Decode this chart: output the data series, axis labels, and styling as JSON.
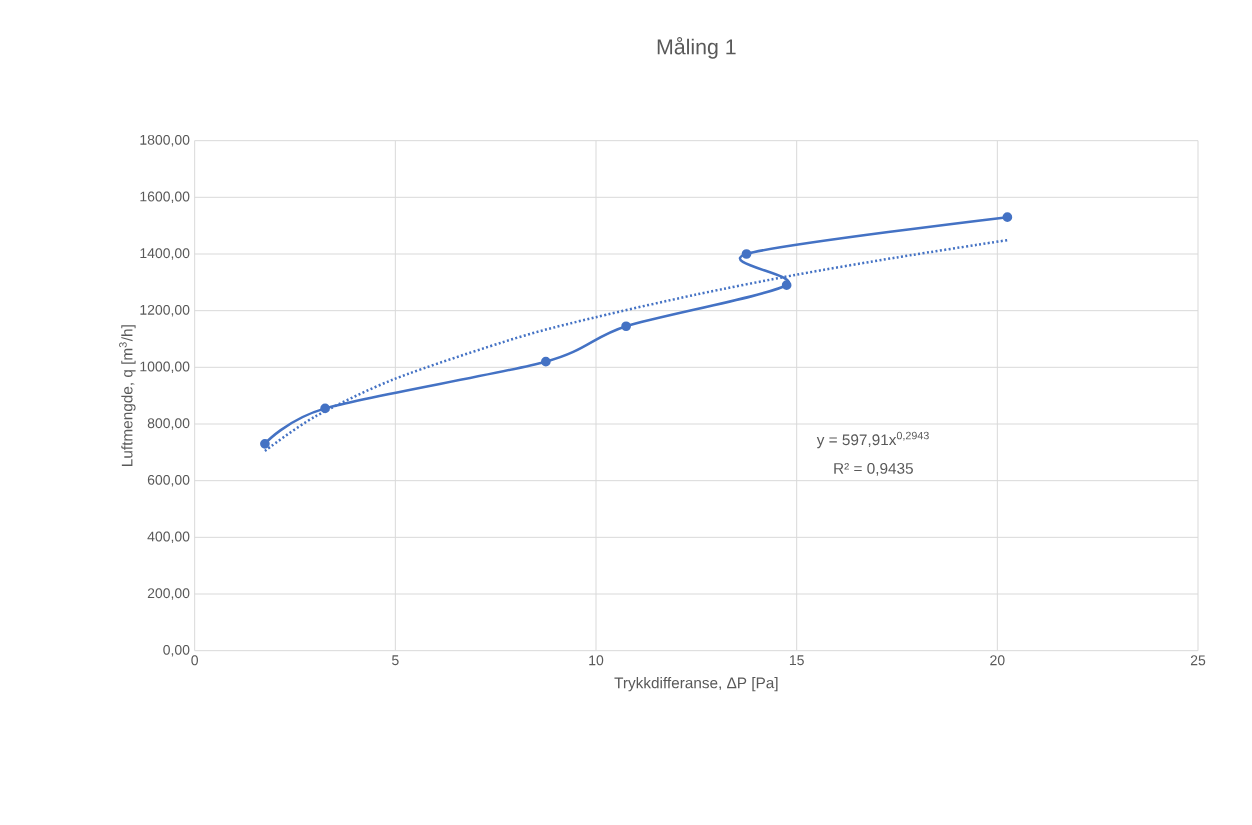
{
  "chart_data": {
    "type": "line",
    "title": "Måling 1",
    "xlabel": "Trykkdifferanse, ΔP [Pa]",
    "ylabel": "Luftmengde, q [m$^{3}$/h]",
    "series": [
      {
        "color": "#4472c4",
        "x": [
          1.75,
          3.25,
          8.75,
          10.75,
          14.75,
          13.75,
          20.25
        ],
        "values": [
          730,
          855,
          1020,
          1145,
          1290,
          1400,
          1530
        ]
      },
      {
        "color": "#4472c4",
        "marker": "none",
        "line_style": "dotted",
        "x": [
          1.75,
          3,
          5,
          8,
          10,
          12.5,
          15,
          17.5,
          20.25
        ],
        "values": [
          705,
          826,
          960,
          1103,
          1177,
          1257,
          1327,
          1388,
          1449
        ]
      }
    ],
    "xlim": [
      0,
      25
    ],
    "xticks": [
      0,
      5,
      10,
      15,
      20,
      25
    ],
    "ylim": [
      0,
      1800
    ],
    "yticks": [
      {
        "value": 0,
        "label": "0,00"
      },
      {
        "value": 200,
        "label": "200,00"
      },
      {
        "value": 400,
        "label": "400,00"
      },
      {
        "value": 600,
        "label": "600,00"
      },
      {
        "value": 800,
        "label": "800,00"
      },
      {
        "value": 1000,
        "label": "1000,00"
      },
      {
        "value": 1200,
        "label": "1200,00"
      },
      {
        "value": 1400,
        "label": "1400,00"
      },
      {
        "value": 1600,
        "label": "1600,00"
      },
      {
        "value": 1800,
        "label": "1800,00"
      }
    ],
    "grid": true,
    "marker": "circle",
    "annotations": [
      "y = 597,91x$^{0,2943}$",
      "R² = 0,9435"
    ]
  }
}
